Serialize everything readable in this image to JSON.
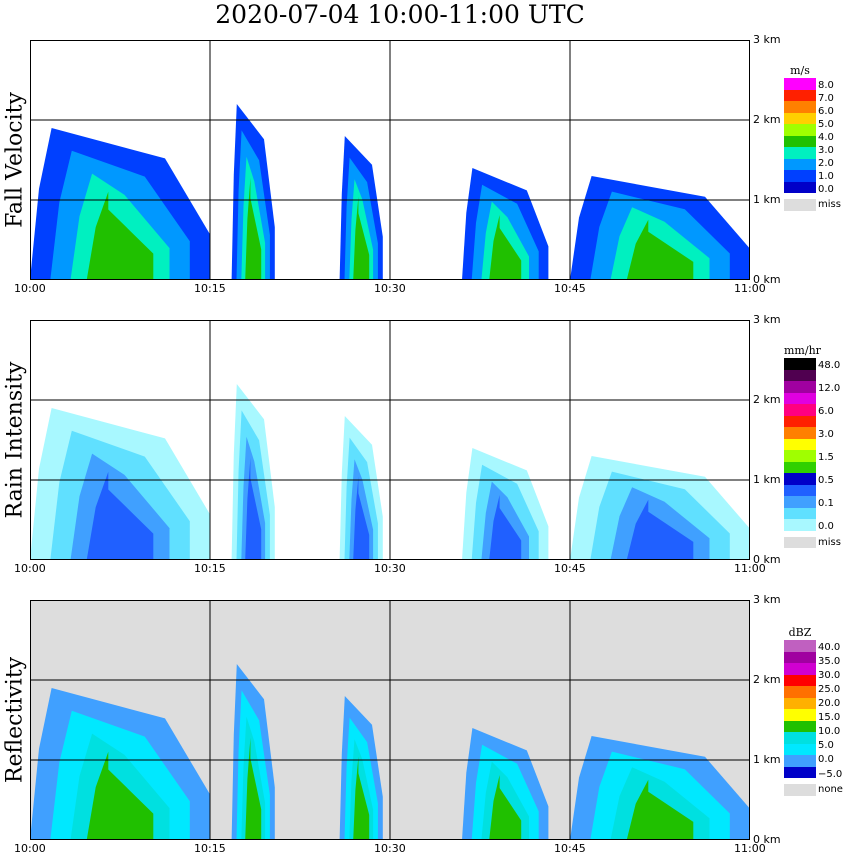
{
  "title": "2020-07-04   10:00-11:00 UTC",
  "colors": {
    "background_missing": "#dddddd",
    "grid": "#000000"
  },
  "chart_data": [
    {
      "type": "heatmap",
      "panel_label": "Fall Velocity",
      "x_ticks": [
        "10:00",
        "10:15",
        "10:30",
        "10:45",
        "11:00"
      ],
      "y_ticks": [
        "0 km",
        "1 km",
        "2 km",
        "3 km"
      ],
      "ylim": [
        0,
        3
      ],
      "legend_unit": "m/s",
      "legend_labels": [
        "8.0",
        "7.0",
        "6.0",
        "5.0",
        "4.0",
        "3.0",
        "2.0",
        "1.0",
        "0.0",
        "miss"
      ],
      "legend_colors": [
        "#ff00ff",
        "#ff2000",
        "#ff8000",
        "#ffd000",
        "#a0ff00",
        "#20c000",
        "#00f0c0",
        "#0098ff",
        "#0040ff",
        "#0000c8",
        "#dddddd"
      ]
    },
    {
      "type": "heatmap",
      "panel_label": "Rain Intensity",
      "x_ticks": [
        "10:00",
        "10:15",
        "10:30",
        "10:45",
        "11:00"
      ],
      "y_ticks": [
        "0 km",
        "1 km",
        "2 km",
        "3 km"
      ],
      "ylim": [
        0,
        3
      ],
      "legend_unit": "mm/hr",
      "legend_labels": [
        "48.0",
        "12.0",
        "6.0",
        "3.0",
        "1.5",
        "0.5",
        "0.1",
        "0.0",
        "miss"
      ],
      "legend_colors": [
        "#000000",
        "#500050",
        "#a000a0",
        "#e000e0",
        "#ff0080",
        "#ff2000",
        "#ff8000",
        "#ffff00",
        "#a0ff00",
        "#30d000",
        "#0000c8",
        "#2060ff",
        "#40a0ff",
        "#60e0ff",
        "#a8f8ff",
        "#dddddd"
      ]
    },
    {
      "type": "heatmap",
      "panel_label": "Reflectivity",
      "x_ticks": [
        "10:00",
        "10:15",
        "10:30",
        "10:45",
        "11:00"
      ],
      "y_ticks": [
        "0 km",
        "1 km",
        "2 km",
        "3 km"
      ],
      "ylim": [
        0,
        3
      ],
      "legend_unit": "dBZ",
      "legend_labels": [
        "40.0",
        "35.0",
        "30.0",
        "25.0",
        "20.0",
        "15.0",
        "10.0",
        "5.0",
        "0.0",
        "−5.0",
        "none"
      ],
      "legend_colors": [
        "#c060c0",
        "#a000a0",
        "#d000d0",
        "#ff0000",
        "#ff7000",
        "#ffb000",
        "#ffff00",
        "#20c000",
        "#00e0e0",
        "#00e8ff",
        "#40a0ff",
        "#0000c8",
        "#dddddd"
      ]
    }
  ]
}
